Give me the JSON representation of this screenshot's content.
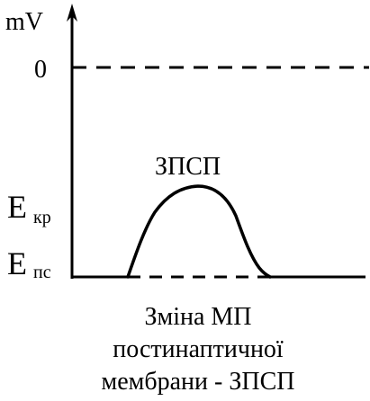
{
  "axis": {
    "unit_label": "mV"
  },
  "levels": {
    "zero_label": "0",
    "threshold_label": "E",
    "threshold_sub": "кр",
    "resting_label": "E",
    "resting_sub": "пс"
  },
  "curve": {
    "peak_label": "ЗПСП"
  },
  "caption": {
    "line1": "Зміна МП",
    "line2": "постинаптичної",
    "line3": "мембрани - ЗПСП"
  },
  "colors": {
    "ink": "#000000",
    "background": "#ffffff"
  }
}
